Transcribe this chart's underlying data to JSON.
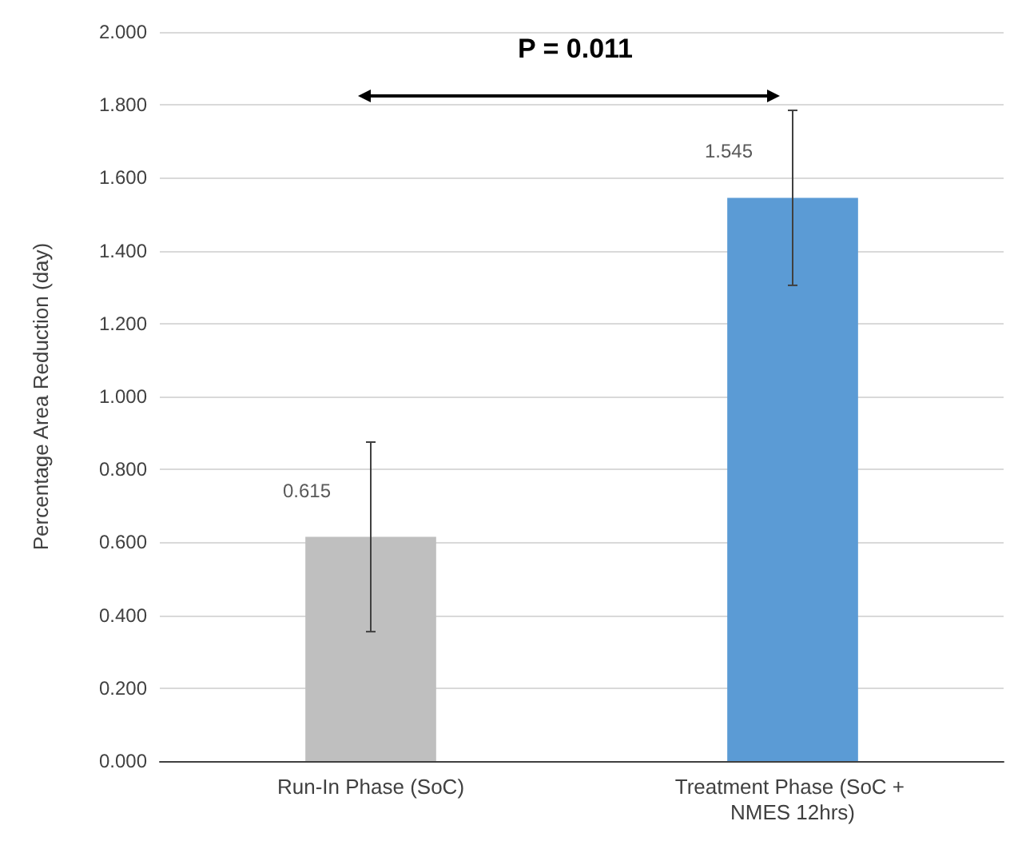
{
  "chart_data": {
    "type": "bar",
    "ylabel": "Percentage Area Reduction (day)",
    "categories": [
      "Run-In Phase (SoC)",
      "Treatment Phase (SoC + NMES 12hrs)"
    ],
    "values": [
      0.615,
      1.545
    ],
    "colors": [
      "#bfbfbf",
      "#5b9bd5"
    ],
    "errors": [
      0.26,
      0.24
    ],
    "data_labels": true,
    "ylim": [
      0,
      2
    ],
    "yticks": [
      {
        "value": 0,
        "label": "0.000"
      },
      {
        "value": 0.2,
        "label": "0.200"
      },
      {
        "value": 0.4,
        "label": "0.400"
      },
      {
        "value": 0.6,
        "label": "0.600"
      },
      {
        "value": 0.8,
        "label": "0.800"
      },
      {
        "value": 1,
        "label": "1.000"
      },
      {
        "value": 1.2,
        "label": "1.200"
      },
      {
        "value": 1.4,
        "label": "1.400"
      },
      {
        "value": 1.6,
        "label": "1.600"
      },
      {
        "value": 1.8,
        "label": "1.800"
      },
      {
        "value": 2,
        "label": "2.000"
      }
    ],
    "grid": true,
    "annotations": [
      "P = 0.011"
    ]
  }
}
